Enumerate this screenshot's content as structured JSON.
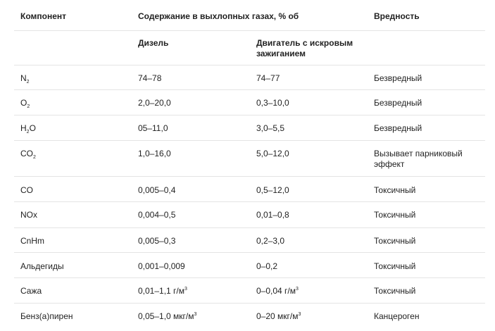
{
  "header": {
    "col_component": "Компонент",
    "col_content": "Содержание в выхлопных газах, % об",
    "col_harm": "Вредность",
    "sub_diesel": "Дизель",
    "sub_spark": "Двигатель с искровым зажиганием"
  },
  "rows": [
    {
      "component_main": "N",
      "component_sub": "2",
      "component_tail": "",
      "diesel": "74–78",
      "spark": "74–77",
      "harm": "Безвредный"
    },
    {
      "component_main": "O",
      "component_sub": "2",
      "component_tail": "",
      "diesel": "2,0–20,0",
      "spark": "0,3–10,0",
      "harm": "Безвредный"
    },
    {
      "component_main": "H",
      "component_sub": "2",
      "component_tail": "O",
      "diesel": "05–11,0",
      "spark": "3,0–5,5",
      "harm": "Безвредный"
    },
    {
      "component_main": "CO",
      "component_sub": "2",
      "component_tail": "",
      "diesel": "1,0–16,0",
      "spark": "5,0–12,0",
      "harm": "Вызывает парниковый эффект"
    },
    {
      "component_main": "CO",
      "component_sub": "",
      "component_tail": "",
      "diesel": "0,005–0,4",
      "spark": "0,5–12,0",
      "harm": "Токсичный"
    },
    {
      "component_main": "NOx",
      "component_sub": "",
      "component_tail": "",
      "diesel": "0,004–0,5",
      "spark": "0,01–0,8",
      "harm": "Токсичный"
    },
    {
      "component_main": "CnHm",
      "component_sub": "",
      "component_tail": "",
      "diesel": "0,005–0,3",
      "spark": "0,2–3,0",
      "harm": "Токсичный"
    },
    {
      "component_main": "Альдегиды",
      "component_sub": "",
      "component_tail": "",
      "diesel": "0,001–0,009",
      "spark": "0–0,2",
      "harm": "Токсичный"
    },
    {
      "component_main": "Сажа",
      "component_sub": "",
      "component_tail": "",
      "diesel_main": "0,01–1,1 г/м",
      "diesel_sup": "3",
      "spark_main": "0–0,04 г/м",
      "spark_sup": "3",
      "harm": "Токсичный"
    },
    {
      "component_main": "Бенз(а)пирен",
      "component_sub": "",
      "component_tail": "",
      "diesel_main": "0,05–1,0 мкг/м",
      "diesel_sup": "3",
      "spark_main": "0–20 мкг/м",
      "spark_sup": "3",
      "harm": "Канцероген"
    }
  ]
}
